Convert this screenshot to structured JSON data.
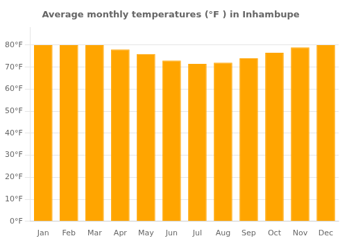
{
  "chart_data": {
    "type": "bar",
    "title": "Average monthly temperatures (°F ) in Inhambupe",
    "categories": [
      "Jan",
      "Feb",
      "Mar",
      "Apr",
      "May",
      "Jun",
      "Jul",
      "Aug",
      "Sep",
      "Oct",
      "Nov",
      "Dec"
    ],
    "values": [
      80,
      80,
      80,
      78,
      76,
      73,
      71.5,
      72,
      74,
      76.5,
      79,
      80
    ],
    "color": "#FFA500",
    "ylim": [
      0,
      88
    ],
    "yticks": [
      {
        "value": 0,
        "label": "0°F"
      },
      {
        "value": 10,
        "label": "10°F"
      },
      {
        "value": 20,
        "label": "20°F"
      },
      {
        "value": 30,
        "label": "30°F"
      },
      {
        "value": 40,
        "label": "40°F"
      },
      {
        "value": 50,
        "label": "50°F"
      },
      {
        "value": 60,
        "label": "60°F"
      },
      {
        "value": 70,
        "label": "70°F"
      },
      {
        "value": 80,
        "label": "80°F"
      }
    ],
    "grid": true
  }
}
